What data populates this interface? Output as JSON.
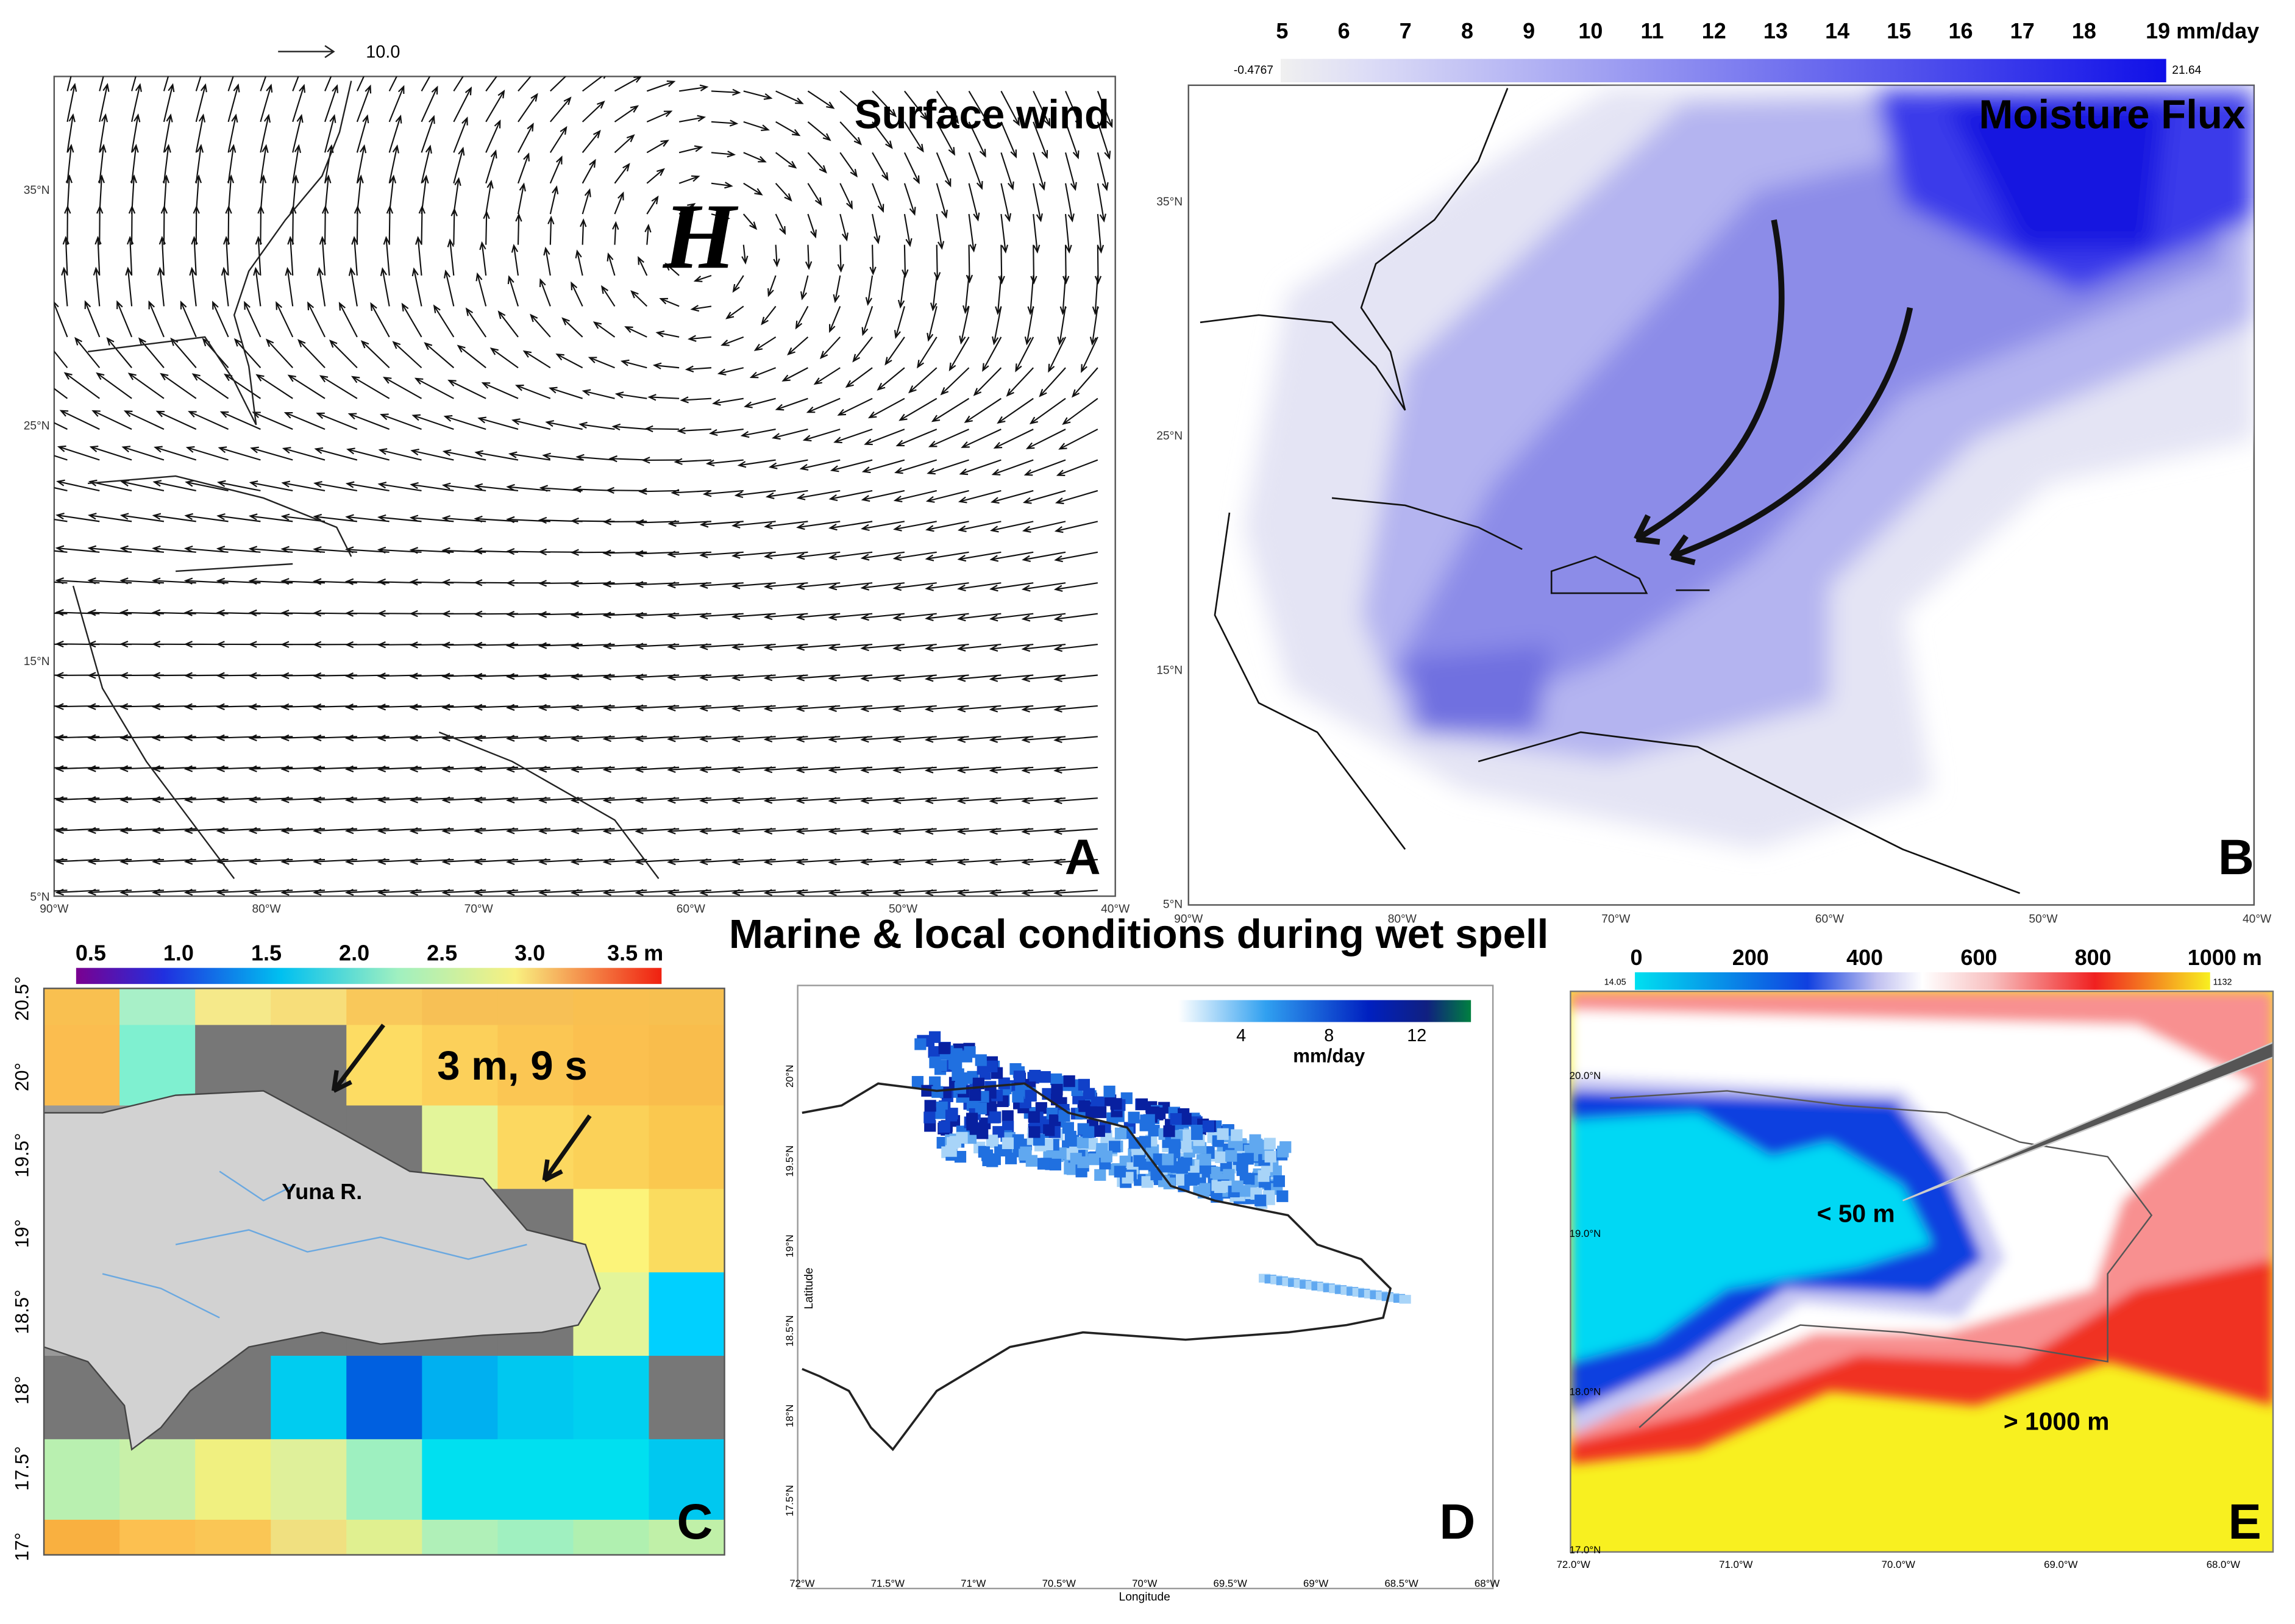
{
  "title": "Marine & local conditions during wet spell",
  "panels": [
    {
      "label": "A",
      "title": "Surface wind",
      "annotation": "H",
      "reference_vector": "10.0",
      "y_ticks": [
        "35°N",
        "25°N",
        "15°N",
        "5°N"
      ],
      "x_ticks": [
        "90°W",
        "80°W",
        "70°W",
        "60°W",
        "50°W",
        "40°W"
      ]
    },
    {
      "label": "B",
      "title": "Moisture Flux",
      "colorbar": {
        "ticks": [
          "5",
          "6",
          "7",
          "8",
          "9",
          "10",
          "11",
          "12",
          "13",
          "14",
          "15",
          "16",
          "17",
          "18",
          "19 mm/day"
        ],
        "min": "-0.4767",
        "max": "21.64"
      },
      "y_ticks": [
        "35°N",
        "25°N",
        "15°N",
        "5°N"
      ],
      "x_ticks": [
        "90°W",
        "80°W",
        "70°W",
        "60°W",
        "50°W",
        "40°W"
      ]
    },
    {
      "label": "C",
      "colorbar": {
        "ticks": [
          "0.5",
          "1.0",
          "1.5",
          "2.0",
          "2.5",
          "3.0",
          "3.5 m"
        ]
      },
      "annotations": [
        "3 m, 9 s",
        "Yuna R."
      ],
      "y_ticks": [
        "20.5°",
        "20°",
        "19.5°",
        "19°",
        "18.5°",
        "18°",
        "17.5°",
        "17°"
      ]
    },
    {
      "label": "D",
      "colorbar": {
        "ticks": [
          "4",
          "8",
          "12"
        ],
        "unit": "mm/day"
      },
      "x_label": "Longitude",
      "y_label": "Latitude",
      "x_ticks": [
        "72°W",
        "71.5°W",
        "71°W",
        "70.5°W",
        "70°W",
        "69.5°W",
        "69°W",
        "68.5°W",
        "68°W"
      ],
      "y_ticks": [
        "20°N",
        "19.5°N",
        "19°N",
        "18.5°N",
        "18°N",
        "17.5°N"
      ]
    },
    {
      "label": "E",
      "colorbar": {
        "ticks": [
          "0",
          "200",
          "400",
          "600",
          "800",
          "1000 m"
        ],
        "min": "14.05",
        "max": "1132"
      },
      "annotations": [
        "< 50 m",
        "> 1000 m"
      ],
      "x_ticks": [
        "72.0°W",
        "71.0°W",
        "70.0°W",
        "69.0°W",
        "68.0°W"
      ],
      "y_ticks": [
        "20.0°N",
        "19.0°N",
        "18.0°N",
        "17.0°N"
      ]
    }
  ]
}
